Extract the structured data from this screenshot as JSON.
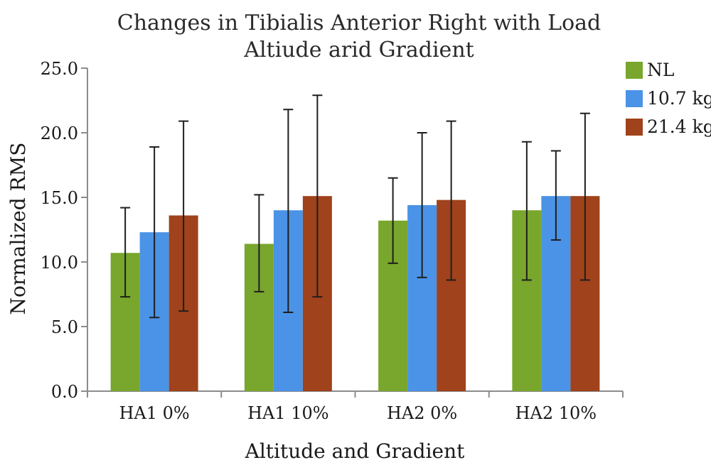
{
  "chart_data": {
    "type": "bar",
    "title_lines": [
      "Changes in Tibialis Anterior Right with Load",
      "Altiude arid Gradient"
    ],
    "xlabel": "Altitude and Gradient",
    "ylabel": "Normalized RMS",
    "ylim": [
      0,
      25
    ],
    "yticks": [
      "0.0",
      "5.0",
      "10.0",
      "15.0",
      "20.0",
      "25.0"
    ],
    "categories": [
      "HA1 0%",
      "HA1 10%",
      "HA2 0%",
      "HA2 10%"
    ],
    "series": [
      {
        "name": "NL",
        "color": "#79a62c",
        "values": [
          10.7,
          11.4,
          13.2,
          14.0
        ],
        "err_low": [
          7.3,
          7.7,
          9.9,
          8.6
        ],
        "err_high": [
          14.2,
          15.2,
          16.5,
          19.3
        ]
      },
      {
        "name": "10.7 kg",
        "color": "#4b93e6",
        "values": [
          12.3,
          14.0,
          14.4,
          15.1
        ],
        "err_low": [
          5.7,
          6.1,
          8.8,
          11.7
        ],
        "err_high": [
          18.9,
          21.8,
          20.0,
          18.6
        ]
      },
      {
        "name": "21.4 kg",
        "color": "#a0421b",
        "values": [
          13.6,
          15.1,
          14.8,
          15.1
        ],
        "err_low": [
          6.2,
          7.3,
          8.6,
          8.6
        ],
        "err_high": [
          20.9,
          22.9,
          20.9,
          21.5
        ]
      }
    ],
    "legend_position": "top-right",
    "grid": false
  }
}
